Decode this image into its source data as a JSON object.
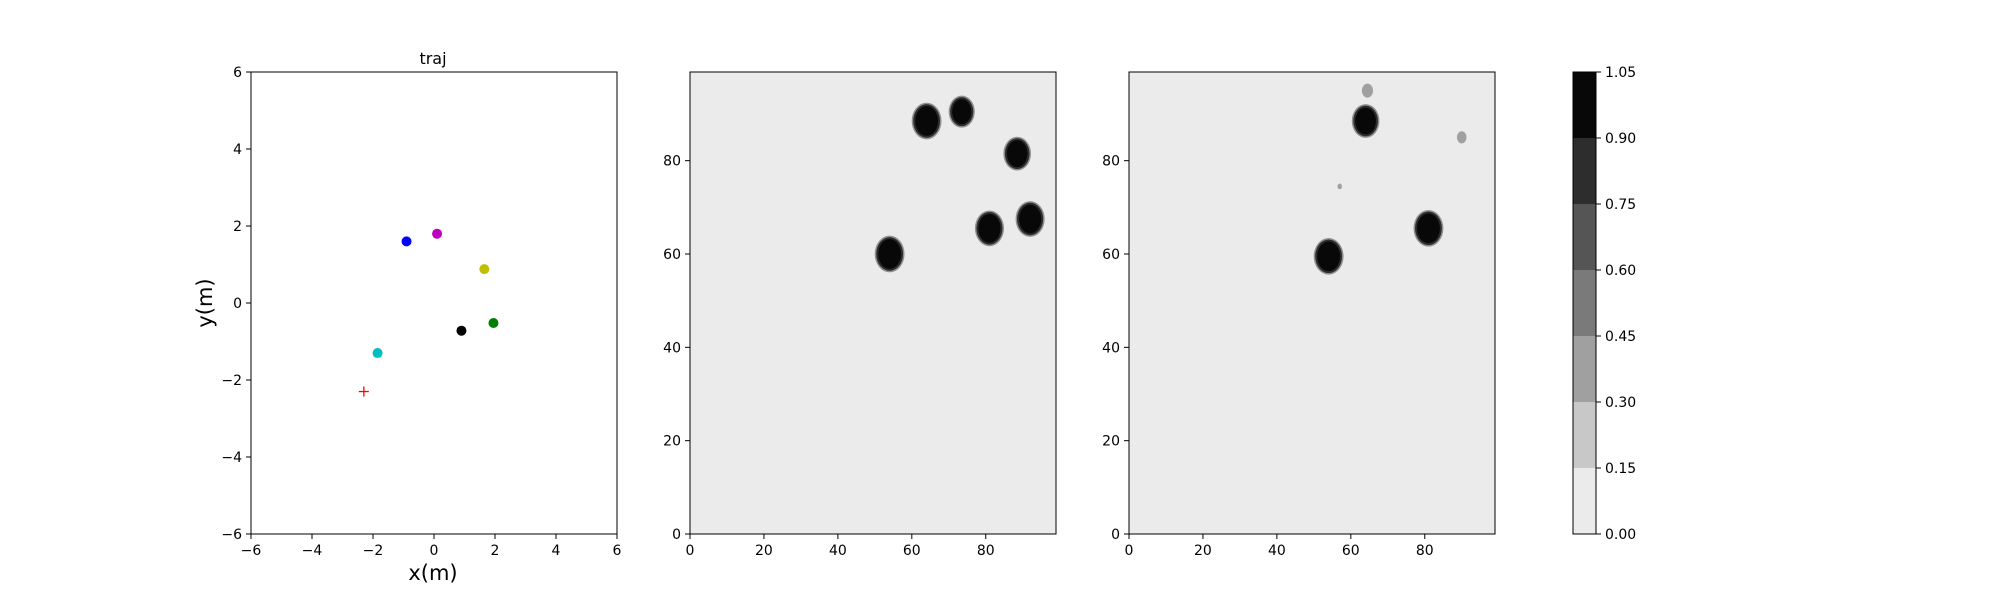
{
  "chart_data": [
    {
      "type": "scatter",
      "title": "traj",
      "xlabel": "x(m)",
      "ylabel": "y(m)",
      "xlim": [
        -6,
        6
      ],
      "ylim": [
        -6,
        6
      ],
      "xticks": [
        "−6",
        "−4",
        "−2",
        "0",
        "2",
        "4",
        "6"
      ],
      "yticks": [
        "−6",
        "−4",
        "−2",
        "0",
        "2",
        "4",
        "6"
      ],
      "grid": false,
      "points": [
        {
          "x": -0.9,
          "y": 1.6,
          "color": "#0000ff",
          "marker": "dot"
        },
        {
          "x": 0.1,
          "y": 1.8,
          "color": "#bf00bf",
          "marker": "dot"
        },
        {
          "x": 1.65,
          "y": 0.88,
          "color": "#bfbf00",
          "marker": "dot"
        },
        {
          "x": 1.95,
          "y": -0.52,
          "color": "#008000",
          "marker": "dot"
        },
        {
          "x": 0.9,
          "y": -0.72,
          "color": "#000000",
          "marker": "dot"
        },
        {
          "x": -1.85,
          "y": -1.3,
          "color": "#00bfbf",
          "marker": "dot"
        },
        {
          "x": -2.3,
          "y": -2.3,
          "color": "#ff0000",
          "marker": "plus"
        }
      ]
    },
    {
      "type": "heatmap",
      "xlim": [
        0,
        99
      ],
      "ylim": [
        0,
        99
      ],
      "xticks": [
        "0",
        "20",
        "40",
        "60",
        "80"
      ],
      "yticks": [
        "0",
        "20",
        "40",
        "60",
        "80"
      ],
      "background_value": 0.05,
      "blobs": [
        {
          "x": 54,
          "y": 60,
          "r": 3.5,
          "value": 1.0
        },
        {
          "x": 64,
          "y": 88.5,
          "r": 3.5,
          "value": 1.0
        },
        {
          "x": 73.5,
          "y": 90.5,
          "r": 3.0,
          "value": 1.0
        },
        {
          "x": 88.5,
          "y": 81.5,
          "r": 3.2,
          "value": 1.0
        },
        {
          "x": 81,
          "y": 65.5,
          "r": 3.4,
          "value": 1.0
        },
        {
          "x": 92,
          "y": 67.5,
          "r": 3.4,
          "value": 1.0
        }
      ]
    },
    {
      "type": "heatmap",
      "xlim": [
        0,
        99
      ],
      "ylim": [
        0,
        99
      ],
      "xticks": [
        "0",
        "20",
        "40",
        "60",
        "80"
      ],
      "yticks": [
        "0",
        "20",
        "40",
        "60",
        "80"
      ],
      "background_value": 0.05,
      "blobs": [
        {
          "x": 54,
          "y": 59.5,
          "r": 3.5,
          "value": 1.0
        },
        {
          "x": 64,
          "y": 88.5,
          "r": 3.2,
          "value": 1.0
        },
        {
          "x": 81,
          "y": 65.5,
          "r": 3.5,
          "value": 1.0
        },
        {
          "x": 64.5,
          "y": 95,
          "r": 1.5,
          "value": 0.3
        },
        {
          "x": 90,
          "y": 85,
          "r": 1.3,
          "value": 0.3
        },
        {
          "x": 57,
          "y": 74.5,
          "r": 0.6,
          "value": 0.3
        }
      ]
    }
  ],
  "colorbar": {
    "levels": [
      0.0,
      0.15,
      0.3,
      0.45,
      0.6,
      0.75,
      0.9,
      1.05
    ],
    "tick_labels": [
      "0.00",
      "0.15",
      "0.30",
      "0.45",
      "0.60",
      "0.75",
      "0.90",
      "1.05"
    ],
    "colors": [
      "#ebebeb",
      "#c8c8c8",
      "#a0a0a0",
      "#7a7a7a",
      "#555555",
      "#2d2d2d",
      "#080808"
    ]
  }
}
